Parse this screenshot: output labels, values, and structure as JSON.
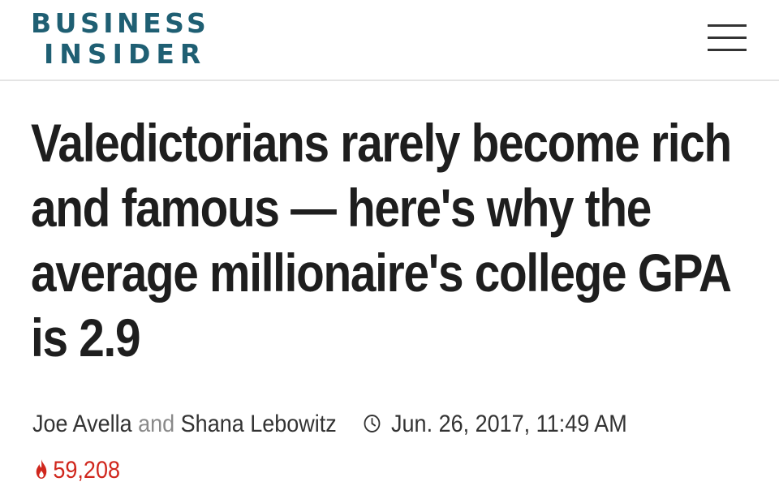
{
  "header": {
    "logo_line1": "BUSINESS",
    "logo_line2": "INSIDER",
    "menu_icon": "hamburger-menu-icon"
  },
  "article": {
    "headline": "Valedictorians rarely become rich and famous — here's why the average millionaire's college GPA is 2.9",
    "author1": "Joe Avella",
    "conjunction": "and",
    "author2": "Shana Lebowitz",
    "date_icon": "clock-icon",
    "date": "Jun. 26, 2017, 11:49 AM",
    "views_icon": "flame-icon",
    "views": "59,208"
  },
  "colors": {
    "logo": "#1f5f73",
    "headline": "#1e1e1e",
    "byline": "#333333",
    "conjunction": "#8a8a8a",
    "views": "#d0271d"
  }
}
